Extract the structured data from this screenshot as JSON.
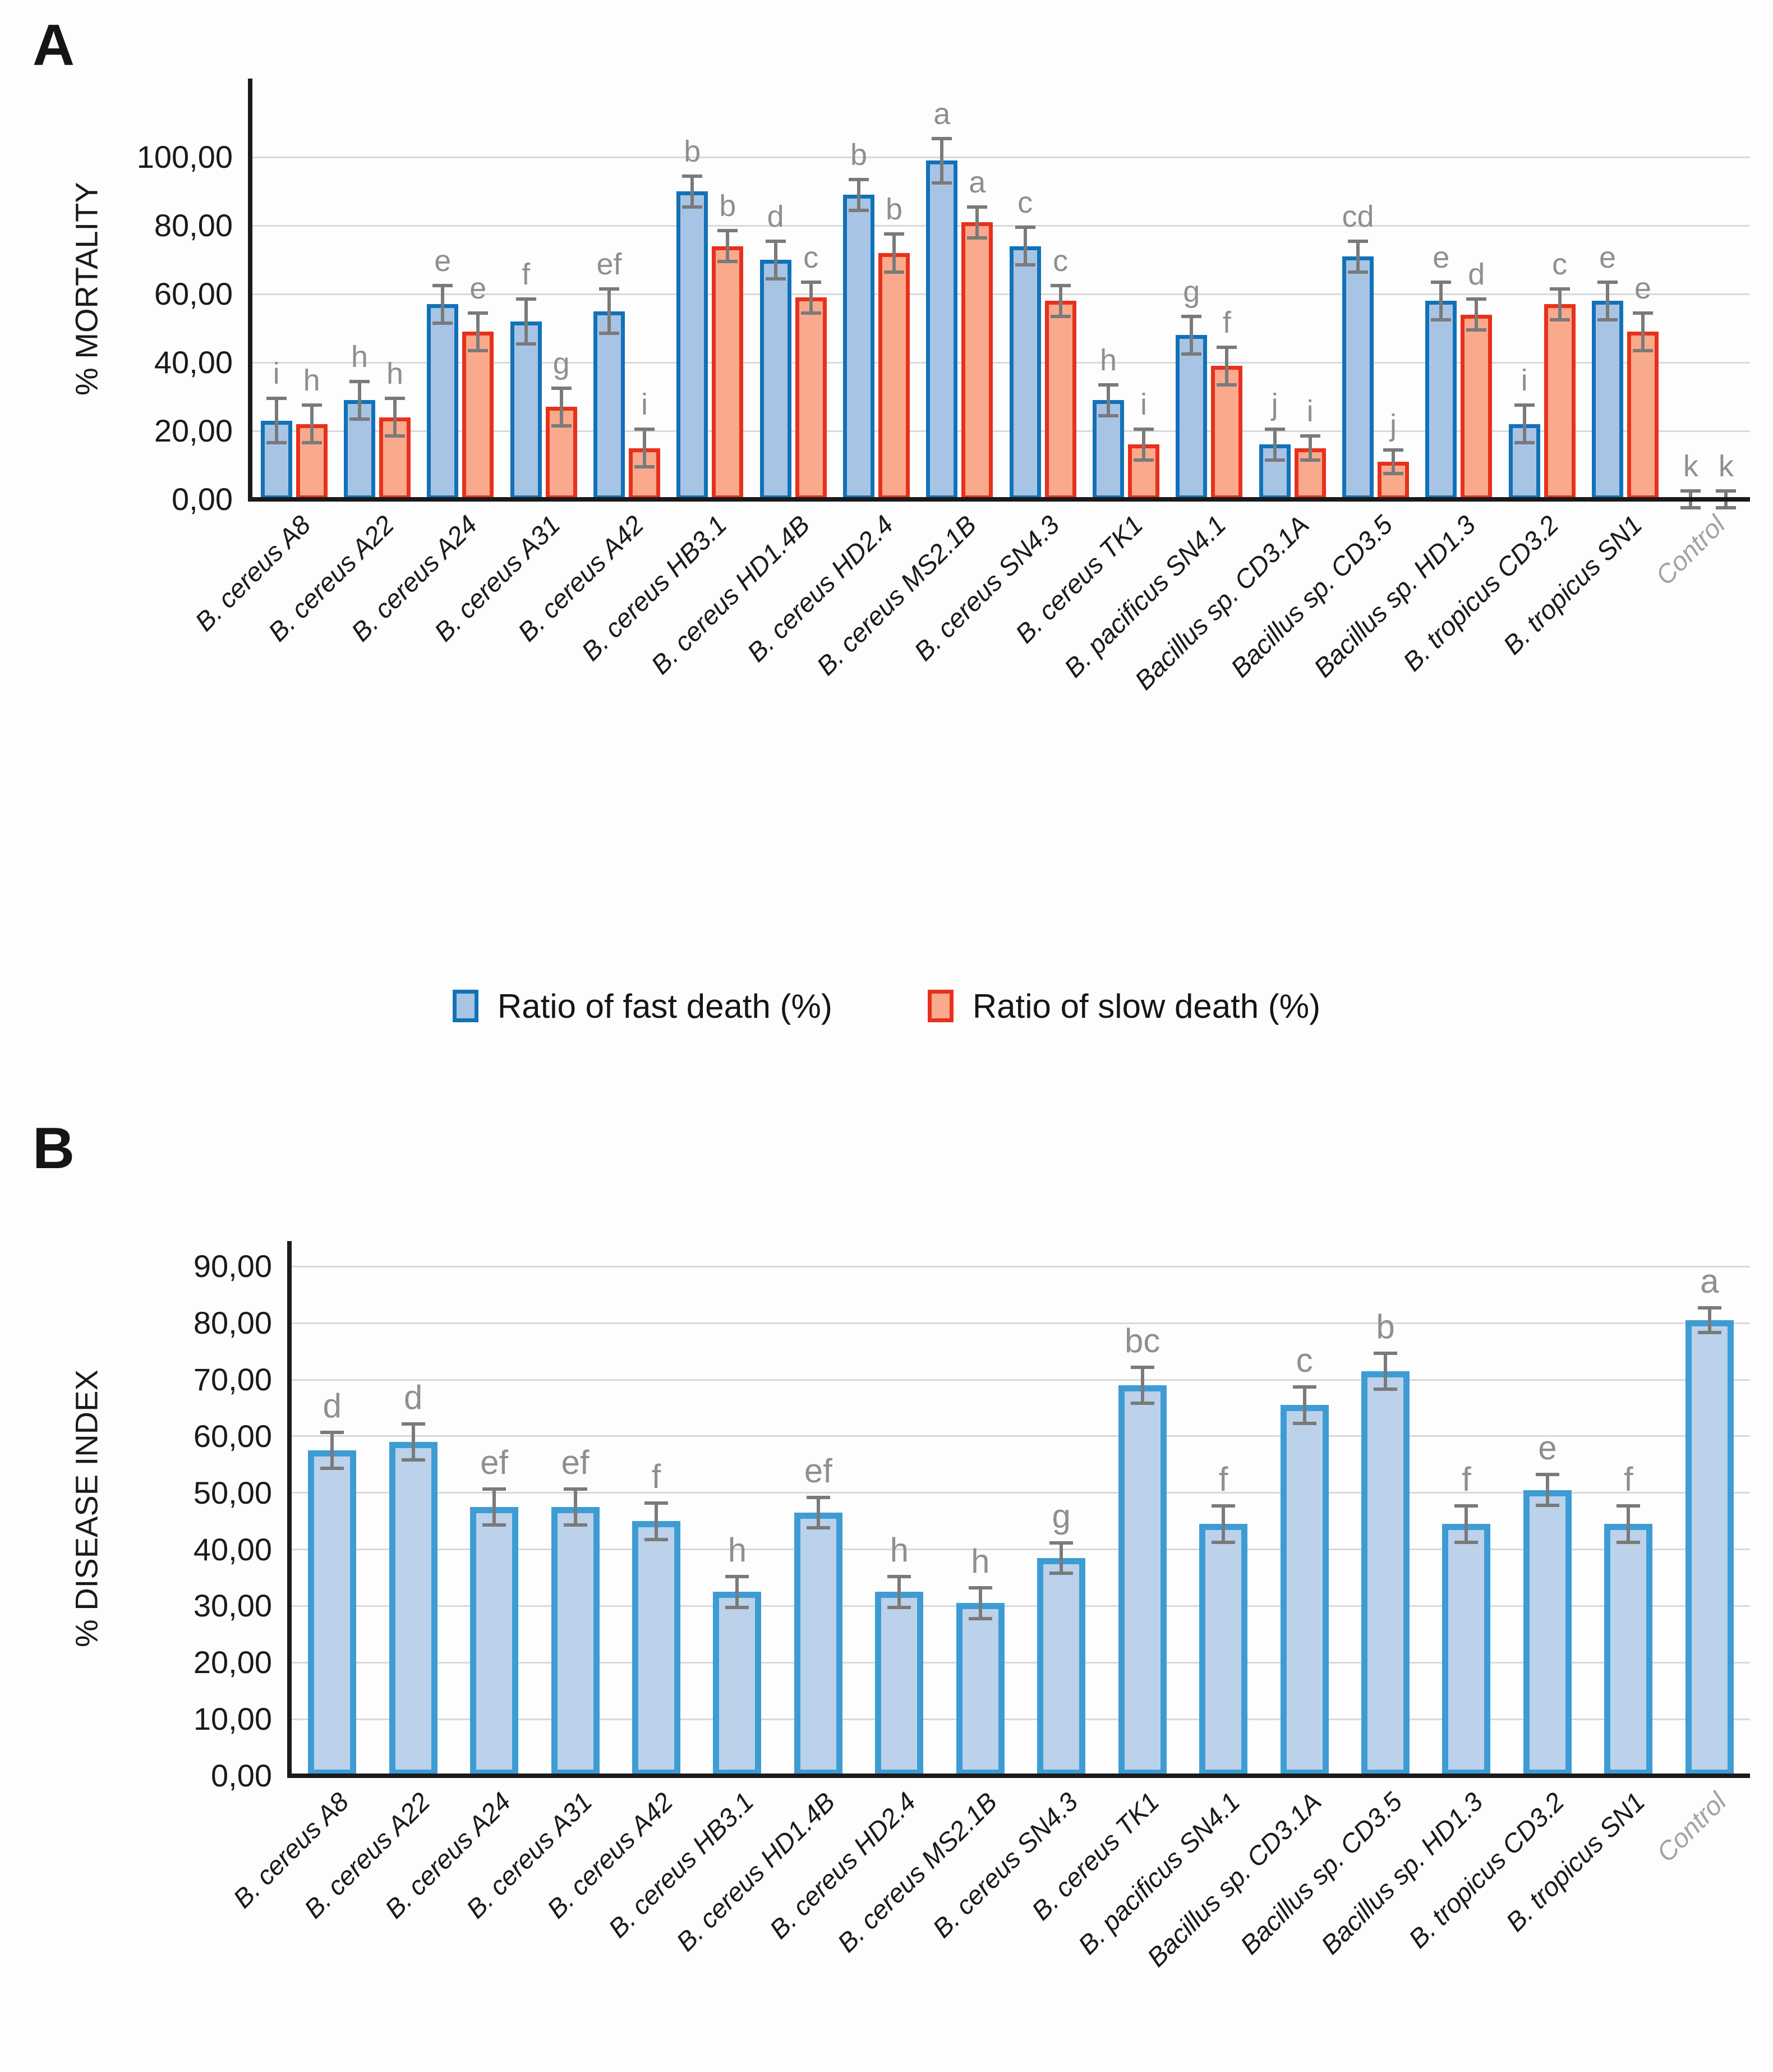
{
  "figure": {
    "panel_a_label": "A",
    "panel_b_label": "B"
  },
  "legend": {
    "items": [
      {
        "label": "Ratio of fast death (%)",
        "fill": "#A8C4E4",
        "border": "#1272B8"
      },
      {
        "label": "Ratio of slow death (%)",
        "fill": "#F9A98C",
        "border": "#E8311C"
      }
    ]
  },
  "colors": {
    "fast_fill": "#A8C4E4",
    "fast_border": "#1272B8",
    "slow_fill": "#F9A98C",
    "slow_border": "#E8311C",
    "disease_fill": "#BCD2EA",
    "disease_border": "#3E9CD5",
    "error_bar": "#7a7a7a",
    "sig_letter": "#8f8f8f",
    "gridline": "#d9d9d9",
    "axis": "#1a1a1a",
    "control_tick": "#a3a3a3"
  },
  "chart_data": [
    {
      "type": "bar",
      "panel": "A",
      "title": "",
      "xlabel": "",
      "ylabel": "% MORTALITY",
      "ylim": [
        0,
        123
      ],
      "ytick_step": 20,
      "grid": true,
      "legend_position": "bottom",
      "ytick_labels": [
        "0,00",
        "20,00",
        "40,00",
        "60,00",
        "80,00",
        "100,00"
      ],
      "categories": [
        "B. cereus A8",
        "B. cereus A22",
        "B. cereus A24",
        "B. cereus A31",
        "B. cereus A42",
        "B. cereus HB3.1",
        "B. cereus HD1.4B",
        "B. cereus HD2.4",
        "B. cereus MS2.1B",
        "B. cereus SN4.3",
        "B. cereus TK1",
        "B. pacificus SN4.1",
        "Bacillus sp. CD3.1A",
        "Bacillus sp. CD3.5",
        "Bacillus sp. HD1.3",
        "B. tropicus CD3.2",
        "B. tropicus SN1",
        "Control"
      ],
      "series": [
        {
          "name": "Ratio of fast death (%)",
          "fill": "#A8C4E4",
          "border": "#1272B8",
          "values": [
            23,
            29,
            57,
            52,
            55,
            90,
            70,
            89,
            99,
            74,
            29,
            48,
            16,
            71,
            58,
            22,
            58,
            0
          ],
          "errors": [
            7,
            6,
            6,
            7,
            7,
            5,
            6,
            5,
            7,
            6,
            5,
            6,
            5,
            5,
            6,
            6,
            6,
            3
          ],
          "letters": [
            "i",
            "h",
            "e",
            "f",
            "ef",
            "b",
            "d",
            "b",
            "a",
            "c",
            "h",
            "g",
            "j",
            "cd",
            "e",
            "i",
            "e",
            "k"
          ]
        },
        {
          "name": "Ratio of slow death (%)",
          "fill": "#F9A98C",
          "border": "#E8311C",
          "values": [
            22,
            24,
            49,
            27,
            15,
            74,
            59,
            72,
            81,
            58,
            16,
            39,
            15,
            11,
            54,
            57,
            49,
            0
          ],
          "errors": [
            6,
            6,
            6,
            6,
            6,
            5,
            5,
            6,
            5,
            5,
            5,
            6,
            4,
            4,
            5,
            5,
            6,
            3
          ],
          "letters": [
            "h",
            "h",
            "e",
            "g",
            "i",
            "b",
            "c",
            "b",
            "a",
            "c",
            "i",
            "f",
            "i",
            "j",
            "d",
            "c",
            "e",
            "k"
          ]
        }
      ]
    },
    {
      "type": "bar",
      "panel": "B",
      "title": "",
      "xlabel": "",
      "ylabel": "% DISEASE INDEX",
      "ylim": [
        0,
        94.5
      ],
      "ytick_step": 10,
      "grid": true,
      "legend_position": "none",
      "ytick_labels": [
        "0,00",
        "10,00",
        "20,00",
        "30,00",
        "40,00",
        "50,00",
        "60,00",
        "70,00",
        "80,00",
        "90,00"
      ],
      "categories": [
        "B. cereus A8",
        "B. cereus A22",
        "B. cereus A24",
        "B. cereus A31",
        "B. cereus A42",
        "B. cereus HB3.1",
        "B. cereus HD1.4B",
        "B. cereus HD2.4",
        "B. cereus MS2.1B",
        "B. cereus SN4.3",
        "B. cereus TK1",
        "B. pacificus SN4.1",
        "Bacillus sp. CD3.1A",
        "Bacillus sp. CD3.5",
        "Bacillus sp. HD1.3",
        "B. tropicus CD3.2",
        "B. tropicus SN1",
        "Control"
      ],
      "series": [
        {
          "name": "% Disease index",
          "fill": "#BCD2EA",
          "border": "#3E9CD5",
          "values": [
            57.5,
            59.0,
            47.5,
            47.5,
            45.0,
            32.5,
            46.5,
            32.5,
            30.5,
            38.5,
            69.0,
            44.5,
            65.5,
            71.5,
            44.5,
            50.5,
            44.5,
            80.5
          ],
          "errors": [
            3.5,
            3.5,
            3.5,
            3.5,
            3.5,
            3.0,
            3.0,
            3.0,
            3.0,
            3.0,
            3.5,
            3.5,
            3.5,
            3.5,
            3.5,
            3.0,
            3.5,
            2.5
          ],
          "letters": [
            "d",
            "d",
            "ef",
            "ef",
            "f",
            "h",
            "ef",
            "h",
            "h",
            "g",
            "bc",
            "f",
            "c",
            "b",
            "f",
            "e",
            "f",
            "a"
          ]
        }
      ]
    }
  ]
}
